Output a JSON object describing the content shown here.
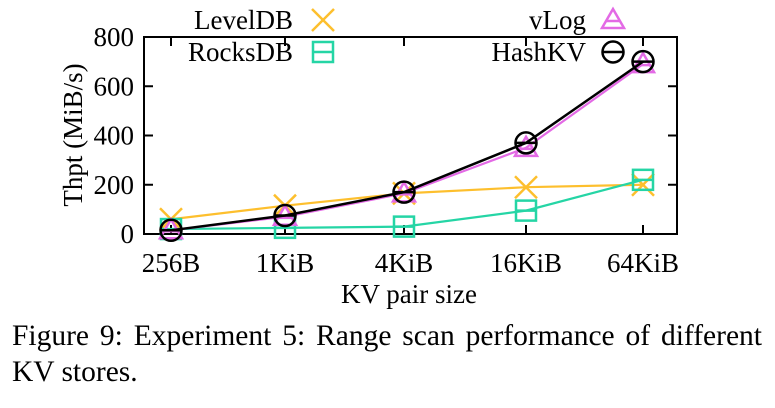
{
  "chart_data": {
    "type": "line",
    "categories": [
      "256B",
      "1KiB",
      "4KiB",
      "16KiB",
      "64KiB"
    ],
    "xlabel": "KV pair size",
    "ylabel": "Thpt (MiB/s)",
    "ylim": [
      0,
      800
    ],
    "yticks": [
      "0",
      "200",
      "400",
      "600",
      "800"
    ],
    "grid": false,
    "legend_position": "top-left",
    "series": [
      {
        "name": "LevelDB",
        "values": [
          60,
          115,
          165,
          190,
          200
        ],
        "color": "#fdbf2d",
        "marker": "cross"
      },
      {
        "name": "RocksDB",
        "values": [
          20,
          25,
          30,
          95,
          220
        ],
        "color": "#25d5a5",
        "marker": "square"
      },
      {
        "name": "vLog",
        "values": [
          15,
          70,
          165,
          350,
          690
        ],
        "color": "#e36ae5",
        "marker": "triangle"
      },
      {
        "name": "HashKV",
        "values": [
          15,
          75,
          170,
          370,
          700
        ],
        "color": "#000000",
        "marker": "circle-line"
      }
    ]
  },
  "caption": "Figure 9: Experiment 5: Range scan performance of different KV stores."
}
